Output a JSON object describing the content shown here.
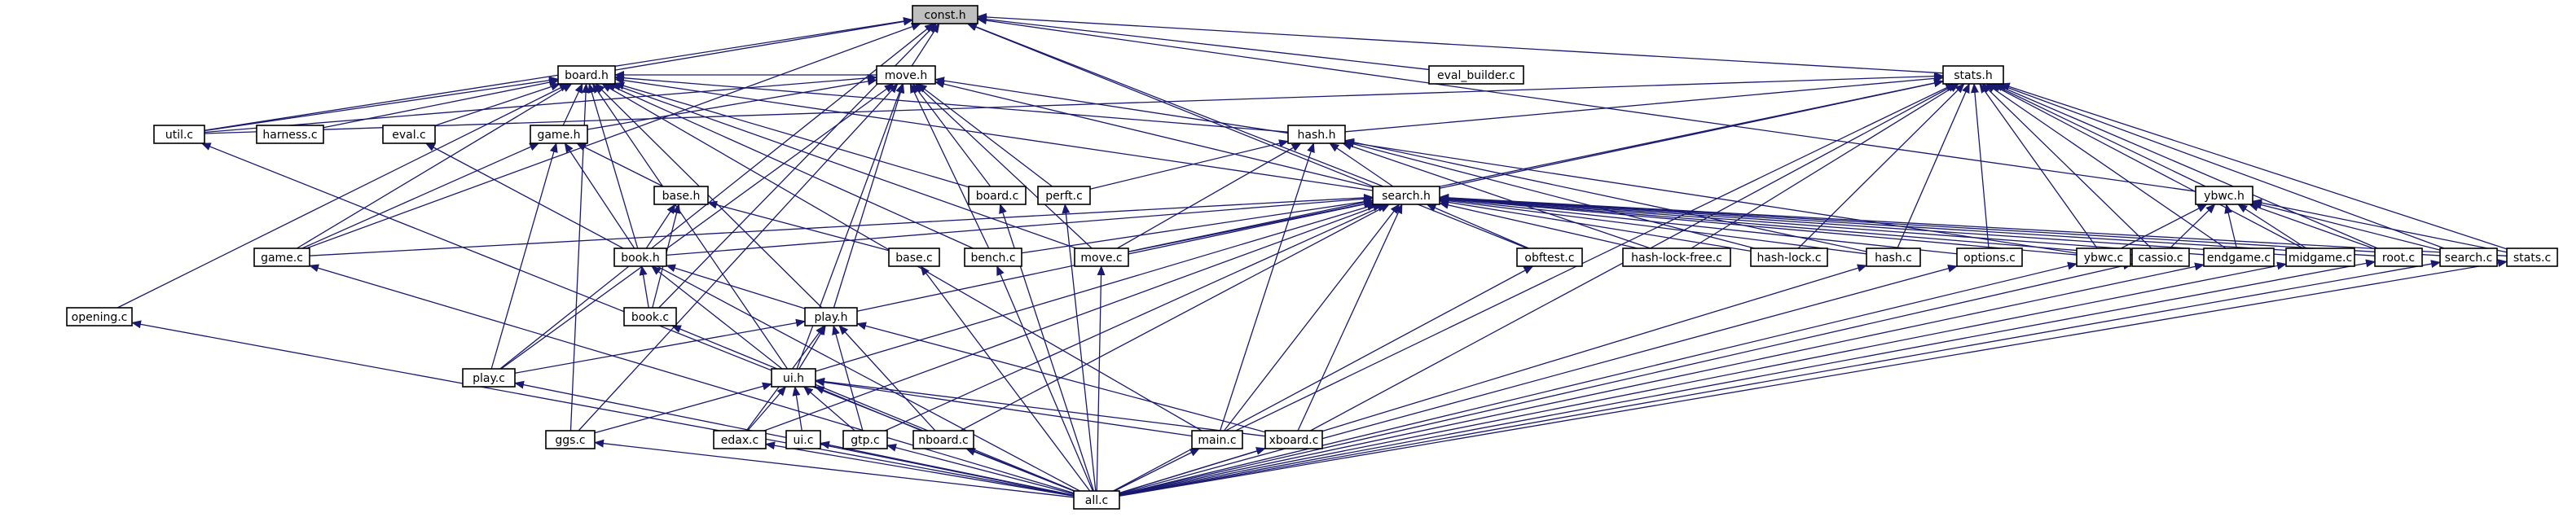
{
  "nodes": [
    {
      "id": "const_h",
      "label": "const.h",
      "root": true
    },
    {
      "id": "board_h",
      "label": "board.h"
    },
    {
      "id": "move_h",
      "label": "move.h"
    },
    {
      "id": "eval_builder_c",
      "label": "eval_builder.c"
    },
    {
      "id": "stats_h",
      "label": "stats.h"
    },
    {
      "id": "util_c",
      "label": "util.c"
    },
    {
      "id": "harness_c",
      "label": "harness.c"
    },
    {
      "id": "eval_c",
      "label": "eval.c"
    },
    {
      "id": "game_h",
      "label": "game.h"
    },
    {
      "id": "hash_h",
      "label": "hash.h"
    },
    {
      "id": "base_h",
      "label": "base.h"
    },
    {
      "id": "board_c",
      "label": "board.c"
    },
    {
      "id": "perft_c",
      "label": "perft.c"
    },
    {
      "id": "search_h",
      "label": "search.h"
    },
    {
      "id": "ybwc_h",
      "label": "ybwc.h"
    },
    {
      "id": "game_c",
      "label": "game.c"
    },
    {
      "id": "book_h",
      "label": "book.h"
    },
    {
      "id": "base_c",
      "label": "base.c"
    },
    {
      "id": "bench_c",
      "label": "bench.c"
    },
    {
      "id": "move_c",
      "label": "move.c"
    },
    {
      "id": "obftest_c",
      "label": "obftest.c"
    },
    {
      "id": "hash_lock_free_c",
      "label": "hash-lock-free.c"
    },
    {
      "id": "hash_lock_c",
      "label": "hash-lock.c"
    },
    {
      "id": "hash_c",
      "label": "hash.c"
    },
    {
      "id": "options_c",
      "label": "options.c"
    },
    {
      "id": "ybwc_c",
      "label": "ybwc.c"
    },
    {
      "id": "cassio_c",
      "label": "cassio.c"
    },
    {
      "id": "endgame_c",
      "label": "endgame.c"
    },
    {
      "id": "midgame_c",
      "label": "midgame.c"
    },
    {
      "id": "root_c",
      "label": "root.c"
    },
    {
      "id": "search_c",
      "label": "search.c"
    },
    {
      "id": "stats_c",
      "label": "stats.c"
    },
    {
      "id": "opening_c",
      "label": "opening.c"
    },
    {
      "id": "book_c",
      "label": "book.c"
    },
    {
      "id": "play_h",
      "label": "play.h"
    },
    {
      "id": "play_c",
      "label": "play.c"
    },
    {
      "id": "ui_h",
      "label": "ui.h"
    },
    {
      "id": "ggs_c",
      "label": "ggs.c"
    },
    {
      "id": "edax_c",
      "label": "edax.c"
    },
    {
      "id": "ui_c",
      "label": "ui.c"
    },
    {
      "id": "gtp_c",
      "label": "gtp.c"
    },
    {
      "id": "nboard_c",
      "label": "nboard.c"
    },
    {
      "id": "main_c",
      "label": "main.c"
    },
    {
      "id": "xboard_c",
      "label": "xboard.c"
    },
    {
      "id": "all_c",
      "label": "all.c"
    }
  ],
  "edges": [
    [
      "board_h",
      "const_h"
    ],
    [
      "move_h",
      "const_h"
    ],
    [
      "eval_builder_c",
      "const_h"
    ],
    [
      "stats_h",
      "const_h"
    ],
    [
      "util_c",
      "const_h"
    ],
    [
      "game_c",
      "const_h"
    ],
    [
      "book_c",
      "const_h"
    ],
    [
      "play_c",
      "const_h"
    ],
    [
      "search_h",
      "const_h"
    ],
    [
      "obftest_c",
      "const_h"
    ],
    [
      "ybwc_h",
      "const_h"
    ],
    [
      "move_h",
      "board_h"
    ],
    [
      "util_c",
      "board_h"
    ],
    [
      "harness_c",
      "board_h"
    ],
    [
      "eval_c",
      "board_h"
    ],
    [
      "game_h",
      "board_h"
    ],
    [
      "hash_h",
      "board_h"
    ],
    [
      "board_c",
      "board_h"
    ],
    [
      "search_h",
      "board_h"
    ],
    [
      "book_h",
      "board_h"
    ],
    [
      "bench_c",
      "board_h"
    ],
    [
      "game_c",
      "board_h"
    ],
    [
      "opening_c",
      "board_h"
    ],
    [
      "ggs_c",
      "board_h"
    ],
    [
      "ui_h",
      "board_h"
    ],
    [
      "play_h",
      "board_h"
    ],
    [
      "move_c",
      "board_h"
    ],
    [
      "main_c",
      "board_h"
    ],
    [
      "util_c",
      "move_h"
    ],
    [
      "game_h",
      "move_h"
    ],
    [
      "board_c",
      "move_h"
    ],
    [
      "perft_c",
      "move_h"
    ],
    [
      "search_h",
      "move_h"
    ],
    [
      "move_c",
      "move_h"
    ],
    [
      "bench_c",
      "move_h"
    ],
    [
      "ui_h",
      "move_h"
    ],
    [
      "play_h",
      "move_h"
    ],
    [
      "ybwc_c",
      "move_h"
    ],
    [
      "ggs_c",
      "move_h"
    ],
    [
      "play_c",
      "move_h"
    ],
    [
      "util_c",
      "stats_h"
    ],
    [
      "hash_h",
      "stats_h"
    ],
    [
      "search_h",
      "stats_h"
    ],
    [
      "ybwc_h",
      "stats_h"
    ],
    [
      "move_c",
      "stats_h"
    ],
    [
      "hash_lock_free_c",
      "stats_h"
    ],
    [
      "hash_lock_c",
      "stats_h"
    ],
    [
      "hash_c",
      "stats_h"
    ],
    [
      "options_c",
      "stats_h"
    ],
    [
      "ybwc_c",
      "stats_h"
    ],
    [
      "cassio_c",
      "stats_h"
    ],
    [
      "endgame_c",
      "stats_h"
    ],
    [
      "midgame_c",
      "stats_h"
    ],
    [
      "root_c",
      "stats_h"
    ],
    [
      "search_c",
      "stats_h"
    ],
    [
      "stats_c",
      "stats_h"
    ],
    [
      "main_c",
      "stats_h"
    ],
    [
      "xboard_c",
      "stats_h"
    ],
    [
      "game_c",
      "game_h"
    ],
    [
      "base_h",
      "game_h"
    ],
    [
      "book_h",
      "game_h"
    ],
    [
      "play_c",
      "game_h"
    ],
    [
      "search_h",
      "hash_h"
    ],
    [
      "perft_c",
      "hash_h"
    ],
    [
      "move_c",
      "hash_h"
    ],
    [
      "hash_lock_free_c",
      "hash_h"
    ],
    [
      "hash_lock_c",
      "hash_h"
    ],
    [
      "hash_c",
      "hash_h"
    ],
    [
      "main_c",
      "hash_h"
    ],
    [
      "book_h",
      "base_h"
    ],
    [
      "base_c",
      "base_h"
    ],
    [
      "book_c",
      "base_h"
    ],
    [
      "game_c",
      "search_h"
    ],
    [
      "book_h",
      "search_h"
    ],
    [
      "bench_c",
      "search_h"
    ],
    [
      "move_c",
      "search_h"
    ],
    [
      "obftest_c",
      "search_h"
    ],
    [
      "hash_lock_free_c",
      "search_h"
    ],
    [
      "hash_lock_c",
      "search_h"
    ],
    [
      "hash_c",
      "search_h"
    ],
    [
      "options_c",
      "search_h"
    ],
    [
      "ybwc_c",
      "search_h"
    ],
    [
      "cassio_c",
      "search_h"
    ],
    [
      "endgame_c",
      "search_h"
    ],
    [
      "midgame_c",
      "search_h"
    ],
    [
      "root_c",
      "search_h"
    ],
    [
      "search_c",
      "search_h"
    ],
    [
      "stats_c",
      "search_h"
    ],
    [
      "play_h",
      "search_h"
    ],
    [
      "ui_h",
      "search_h"
    ],
    [
      "edax_c",
      "search_h"
    ],
    [
      "gtp_c",
      "search_h"
    ],
    [
      "nboard_c",
      "search_h"
    ],
    [
      "main_c",
      "search_h"
    ],
    [
      "xboard_c",
      "search_h"
    ],
    [
      "ybwc_c",
      "ybwc_h"
    ],
    [
      "cassio_c",
      "ybwc_h"
    ],
    [
      "endgame_c",
      "ybwc_h"
    ],
    [
      "midgame_c",
      "ybwc_h"
    ],
    [
      "root_c",
      "ybwc_h"
    ],
    [
      "search_c",
      "ybwc_h"
    ],
    [
      "stats_c",
      "ybwc_h"
    ],
    [
      "book_c",
      "book_h"
    ],
    [
      "play_h",
      "book_h"
    ],
    [
      "ui_h",
      "book_h"
    ],
    [
      "play_c",
      "play_h"
    ],
    [
      "ui_h",
      "play_h"
    ],
    [
      "edax_c",
      "play_h"
    ],
    [
      "gtp_c",
      "play_h"
    ],
    [
      "nboard_c",
      "play_h"
    ],
    [
      "xboard_c",
      "play_h"
    ],
    [
      "ggs_c",
      "ui_h"
    ],
    [
      "edax_c",
      "ui_h"
    ],
    [
      "ui_c",
      "ui_h"
    ],
    [
      "gtp_c",
      "ui_h"
    ],
    [
      "nboard_c",
      "ui_h"
    ],
    [
      "main_c",
      "ui_h"
    ],
    [
      "xboard_c",
      "ui_h"
    ],
    [
      "all_c",
      "util_c"
    ],
    [
      "all_c",
      "eval_c"
    ],
    [
      "all_c",
      "game_c"
    ],
    [
      "all_c",
      "board_c"
    ],
    [
      "all_c",
      "perft_c"
    ],
    [
      "all_c",
      "base_c"
    ],
    [
      "all_c",
      "bench_c"
    ],
    [
      "all_c",
      "move_c"
    ],
    [
      "all_c",
      "obftest_c"
    ],
    [
      "all_c",
      "hash_c"
    ],
    [
      "all_c",
      "options_c"
    ],
    [
      "all_c",
      "ybwc_c"
    ],
    [
      "all_c",
      "cassio_c"
    ],
    [
      "all_c",
      "endgame_c"
    ],
    [
      "all_c",
      "midgame_c"
    ],
    [
      "all_c",
      "root_c"
    ],
    [
      "all_c",
      "search_c"
    ],
    [
      "all_c",
      "stats_c"
    ],
    [
      "all_c",
      "opening_c"
    ],
    [
      "all_c",
      "book_c"
    ],
    [
      "all_c",
      "play_c"
    ],
    [
      "all_c",
      "ggs_c"
    ],
    [
      "all_c",
      "edax_c"
    ],
    [
      "all_c",
      "ui_c"
    ],
    [
      "all_c",
      "gtp_c"
    ],
    [
      "all_c",
      "nboard_c"
    ],
    [
      "all_c",
      "main_c"
    ],
    [
      "all_c",
      "xboard_c"
    ]
  ]
}
